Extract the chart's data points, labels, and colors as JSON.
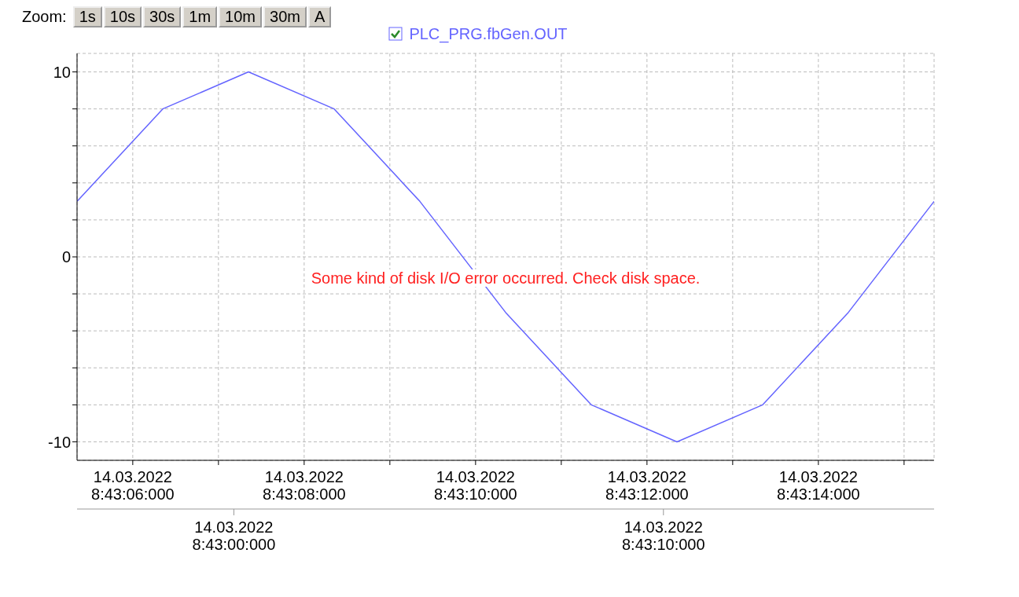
{
  "chart_data": {
    "type": "line",
    "x": [
      "2022-03-14T08:43:05.350",
      "2022-03-14T08:43:06.350",
      "2022-03-14T08:43:07.350",
      "2022-03-14T08:43:08.350",
      "2022-03-14T08:43:09.350",
      "2022-03-14T08:43:10.350",
      "2022-03-14T08:43:11.350",
      "2022-03-14T08:43:12.350",
      "2022-03-14T08:43:13.350",
      "2022-03-14T08:43:14.350",
      "2022-03-14T08:43:15.350"
    ],
    "series": [
      {
        "name": "PLC_PRG.fbGen.OUT",
        "color": "#6464ff",
        "values": [
          3,
          8,
          10,
          8,
          3,
          -3,
          -8,
          -10,
          -8,
          -3,
          3
        ]
      }
    ],
    "xlim": [
      "2022-03-14T08:43:05.350",
      "2022-03-14T08:43:15.350"
    ],
    "xticks": [
      {
        "value": "2022-03-14T08:43:06",
        "label": "14.03.2022\n8:43:06:000"
      },
      {
        "value": "2022-03-14T08:43:07",
        "label": null
      },
      {
        "value": "2022-03-14T08:43:08",
        "label": "14.03.2022\n8:43:08:000"
      },
      {
        "value": "2022-03-14T08:43:09",
        "label": null
      },
      {
        "value": "2022-03-14T08:43:10",
        "label": "14.03.2022\n8:43:10:000"
      },
      {
        "value": "2022-03-14T08:43:11",
        "label": null
      },
      {
        "value": "2022-03-14T08:43:12",
        "label": "14.03.2022\n8:43:12:000"
      },
      {
        "value": "2022-03-14T08:43:13",
        "label": null
      },
      {
        "value": "2022-03-14T08:43:14",
        "label": "14.03.2022\n8:43:14:000"
      },
      {
        "value": "2022-03-14T08:43:15",
        "label": null
      }
    ],
    "x2lim": [
      "2022-03-14T08:42:56.350",
      "2022-03-14T08:43:16.300"
    ],
    "x2ticks": [
      {
        "value": "2022-03-14T08:43:00",
        "label": "14.03.2022\n8:43:00:000"
      },
      {
        "value": "2022-03-14T08:43:10",
        "label": "14.03.2022\n8:43:10:000"
      }
    ],
    "ylim": [
      -11,
      11
    ],
    "yticks": [
      {
        "value": -10,
        "label": "-10"
      },
      {
        "value": -8,
        "label": null
      },
      {
        "value": -6,
        "label": null
      },
      {
        "value": -4,
        "label": null
      },
      {
        "value": -2,
        "label": null
      },
      {
        "value": 0,
        "label": "0"
      },
      {
        "value": 2,
        "label": null
      },
      {
        "value": 4,
        "label": null
      },
      {
        "value": 6,
        "label": null
      },
      {
        "value": 8,
        "label": null
      },
      {
        "value": 10,
        "label": "10"
      }
    ],
    "grid": true,
    "legend": "top",
    "marker": "none",
    "line_style": "solid",
    "annotations": [
      "Some kind of disk I/O error occurred. Check disk space.",
      "Zoom:",
      "1s",
      "10s",
      "30s",
      "1m",
      "10m",
      "30m",
      "A"
    ]
  }
}
